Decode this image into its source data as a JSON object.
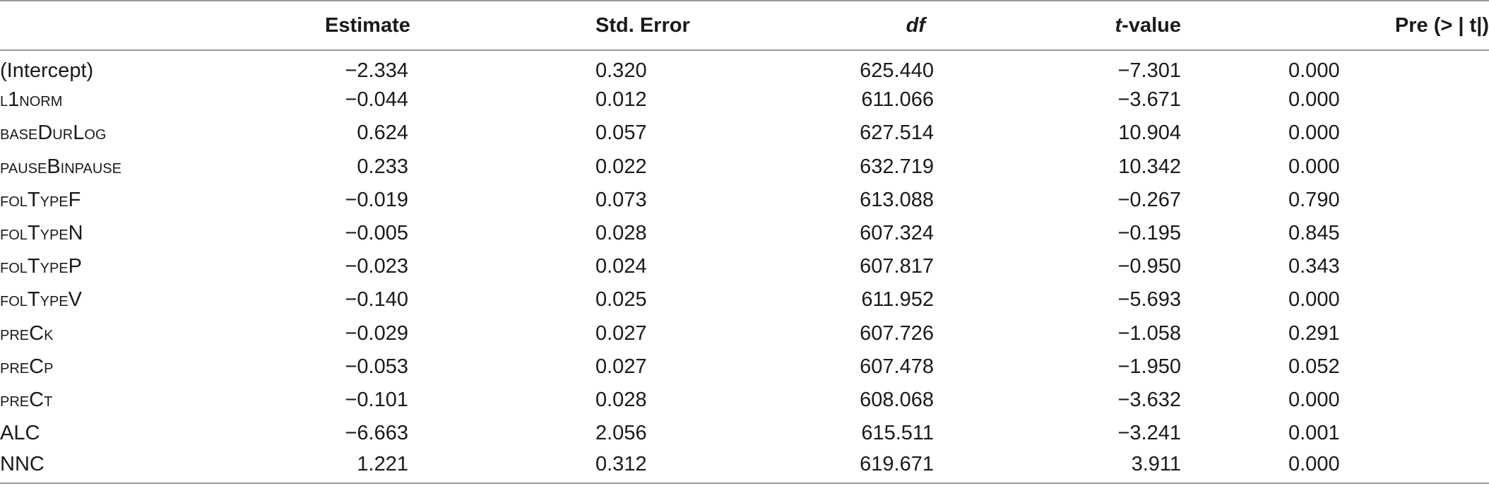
{
  "table": {
    "headers": {
      "term": "",
      "estimate": "Estimate",
      "std_error": "Std. Error",
      "df": "df",
      "t_value_italic": "t",
      "t_value_rest": "-value",
      "p_value": "Pre (> | t|)"
    },
    "rows": [
      {
        "term": "(Intercept)",
        "estimate": "−2.334",
        "std_error": "0.320",
        "df": "625.440",
        "t_value": "−7.301",
        "p_value": "0.000"
      },
      {
        "term": "l1norm",
        "estimate": "−0.044",
        "std_error": "0.012",
        "df": "611.066",
        "t_value": "−3.671",
        "p_value": "0.000"
      },
      {
        "term": "baseDurLog",
        "estimate": "0.624",
        "std_error": "0.057",
        "df": "627.514",
        "t_value": "10.904",
        "p_value": "0.000"
      },
      {
        "term": "pauseBinpause",
        "estimate": "0.233",
        "std_error": "0.022",
        "df": "632.719",
        "t_value": "10.342",
        "p_value": "0.000"
      },
      {
        "term": "folTypeF",
        "estimate": "−0.019",
        "std_error": "0.073",
        "df": "613.088",
        "t_value": "−0.267",
        "p_value": "0.790"
      },
      {
        "term": "folTypeN",
        "estimate": "−0.005",
        "std_error": "0.028",
        "df": "607.324",
        "t_value": "−0.195",
        "p_value": "0.845"
      },
      {
        "term": "folTypeP",
        "estimate": "−0.023",
        "std_error": "0.024",
        "df": "607.817",
        "t_value": "−0.950",
        "p_value": "0.343"
      },
      {
        "term": "folTypeV",
        "estimate": "−0.140",
        "std_error": "0.025",
        "df": "611.952",
        "t_value": "−5.693",
        "p_value": "0.000"
      },
      {
        "term": "preCk",
        "estimate": "−0.029",
        "std_error": "0.027",
        "df": "607.726",
        "t_value": "−1.058",
        "p_value": "0.291"
      },
      {
        "term": "preCp",
        "estimate": "−0.053",
        "std_error": "0.027",
        "df": "607.478",
        "t_value": "−1.950",
        "p_value": "0.052"
      },
      {
        "term": "preCt",
        "estimate": "−0.101",
        "std_error": "0.028",
        "df": "608.068",
        "t_value": "−3.632",
        "p_value": "0.000"
      },
      {
        "term": "ALC",
        "estimate": "−6.663",
        "std_error": "2.056",
        "df": "615.511",
        "t_value": "−3.241",
        "p_value": "0.001"
      },
      {
        "term": "NNC",
        "estimate": "1.221",
        "std_error": "0.312",
        "df": "619.671",
        "t_value": "3.911",
        "p_value": "0.000"
      }
    ]
  }
}
